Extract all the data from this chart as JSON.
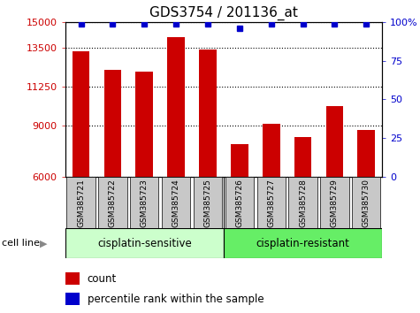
{
  "title": "GDS3754 / 201136_at",
  "categories": [
    "GSM385721",
    "GSM385722",
    "GSM385723",
    "GSM385724",
    "GSM385725",
    "GSM385726",
    "GSM385727",
    "GSM385728",
    "GSM385729",
    "GSM385730"
  ],
  "bar_values": [
    13300,
    12200,
    12100,
    14100,
    13400,
    7900,
    9100,
    8300,
    10100,
    8700
  ],
  "bar_color": "#cc0000",
  "percentile_values": [
    99,
    99,
    99,
    99,
    99,
    96,
    99,
    99,
    99,
    99
  ],
  "percentile_color": "#0000cc",
  "ylim_left": [
    6000,
    15000
  ],
  "ylim_right": [
    0,
    100
  ],
  "yticks_left": [
    6000,
    9000,
    11250,
    13500,
    15000
  ],
  "ytick_labels_left": [
    "6000",
    "9000",
    "11250",
    "13500",
    "15000"
  ],
  "yticks_right": [
    0,
    25,
    50,
    75,
    100
  ],
  "ytick_labels_right": [
    "0",
    "25",
    "50",
    "75",
    "100%"
  ],
  "group1_label": "cisplatin-sensitive",
  "group2_label": "cisplatin-resistant",
  "group1_color": "#ccffcc",
  "group2_color": "#66ee66",
  "cell_line_label": "cell line",
  "legend_count_label": "count",
  "legend_pct_label": "percentile rank within the sample",
  "bar_width": 0.55,
  "plot_bg_color": "#ffffff",
  "tick_area_color": "#c8c8c8",
  "title_fontsize": 11,
  "tick_fontsize": 8,
  "label_fontsize": 7
}
